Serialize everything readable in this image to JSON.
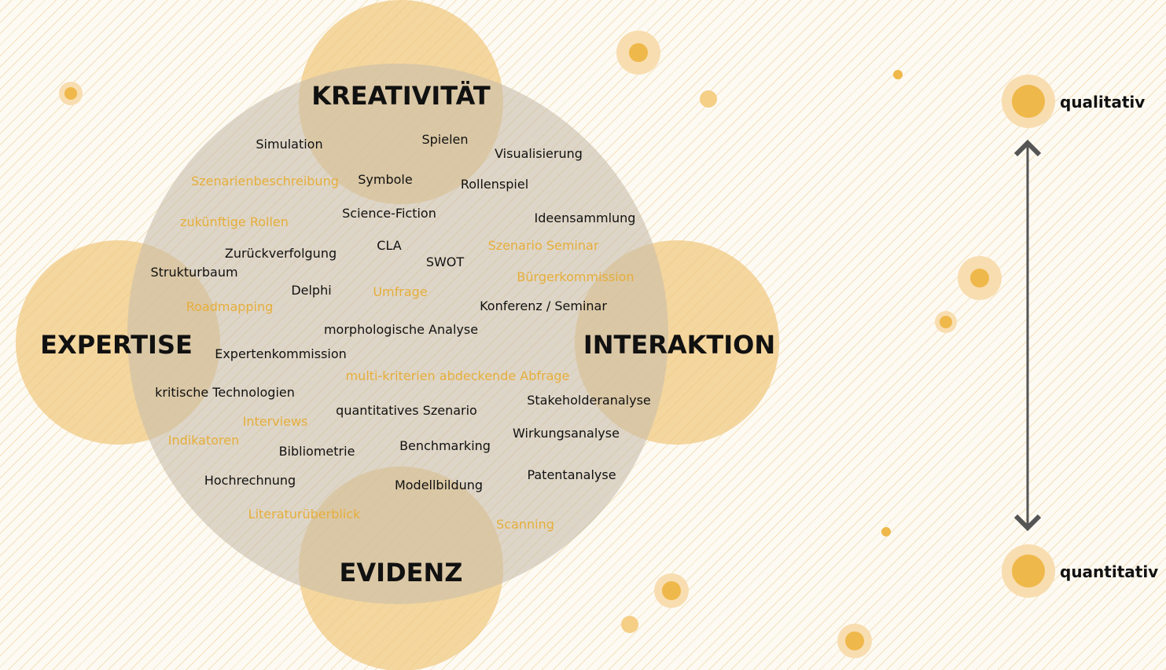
{
  "pillars": {
    "top": "KREATIVITÄT",
    "left": "EXPERTISE",
    "right": "INTERAKTION",
    "bottom": "EVIDENZ"
  },
  "methods": {
    "simulation": "Simulation",
    "spielen": "Spielen",
    "visualisierung": "Visualisierung",
    "szenarienbeschreibung": "Szenarienbeschreibung",
    "symbole": "Symbole",
    "rollenspiel": "Rollenspiel",
    "science_fiction": "Science-Fiction",
    "ideensammlung": "Ideensammlung",
    "zukuenftige_rollen": "zukünftige Rollen",
    "cla": "CLA",
    "szenario_seminar": "Szenario Seminar",
    "zurueckverfolgung": "Zurückverfolgung",
    "swot": "SWOT",
    "strukturbaum": "Strukturbaum",
    "buergerkommission": "Bürgerkommission",
    "delphi": "Delphi",
    "umfrage": "Umfrage",
    "konferenz_seminar": "Konferenz / Seminar",
    "roadmapping": "Roadmapping",
    "morphologische_analyse": "morphologische Analyse",
    "expertenkommission": "Expertenkommission",
    "multi_kriterien": "multi-kriterien abdeckende Abfrage",
    "kritische_technologien": "kritische Technologien",
    "stakeholderanalyse": "Stakeholderanalyse",
    "interviews": "Interviews",
    "quantitatives_szenario": "quantitatives Szenario",
    "indikatoren": "Indikatoren",
    "wirkungsanalyse": "Wirkungsanalyse",
    "bibliometrie": "Bibliometrie",
    "benchmarking": "Benchmarking",
    "hochrechnung": "Hochrechnung",
    "patentanalyse": "Patentanalyse",
    "modellbildung": "Modellbildung",
    "literaturueberblick": "Literaturüberblick",
    "scanning": "Scanning"
  },
  "scale": {
    "top_label": "qualitativ",
    "bottom_label": "quantitativ"
  },
  "colors": {
    "circle_fill": "#f0c77e",
    "central_fill": "#c8bdaa",
    "accent_orange": "#e6ae3b",
    "dot_core": "#efb84a",
    "dot_halo": "#f8ddb0",
    "text_dark": "#111111",
    "arrow": "#555555"
  }
}
